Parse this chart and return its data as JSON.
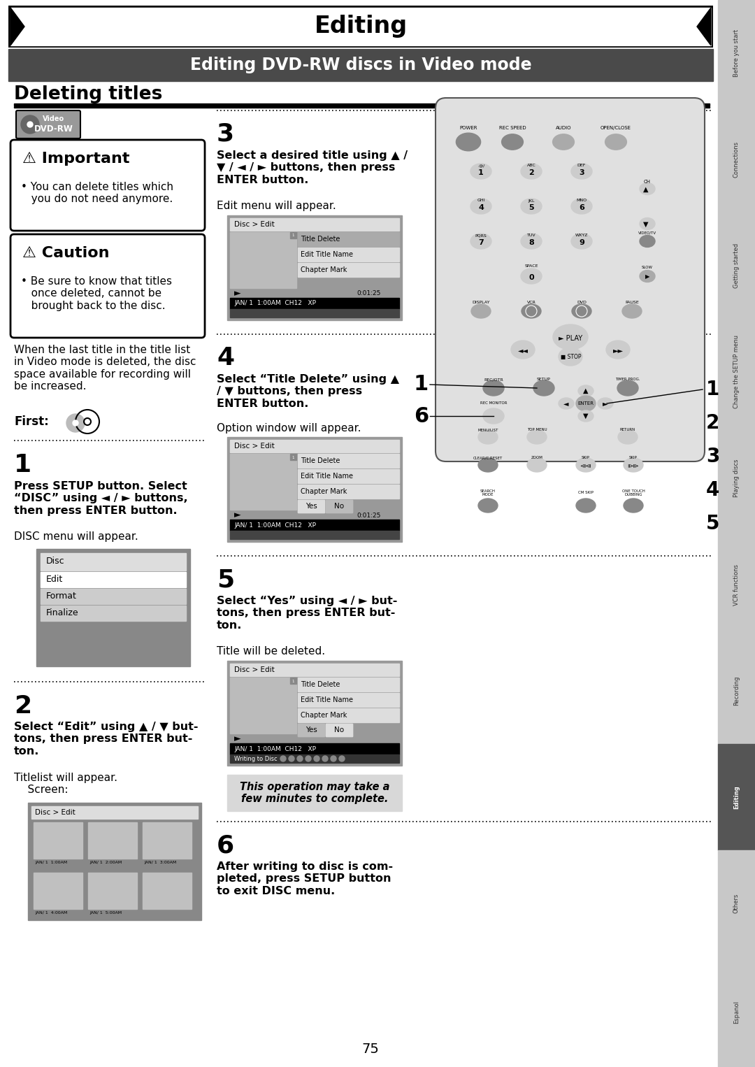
{
  "title": "Editing",
  "subtitle": "Editing DVD-RW discs in Video mode",
  "section_title": "Deleting titles",
  "bg_color": "#ffffff",
  "page_num": "75"
}
